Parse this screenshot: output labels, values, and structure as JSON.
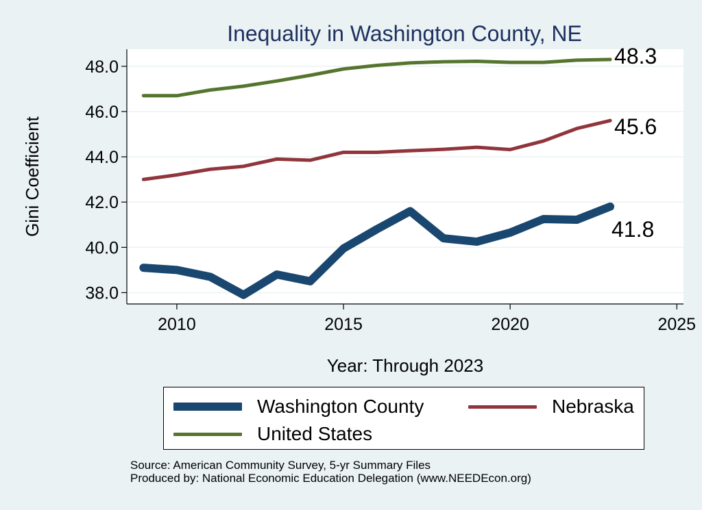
{
  "chart_data": {
    "type": "line",
    "title": "Inequality in Washington County, NE",
    "xlabel": "Year: Through 2023",
    "ylabel": "Gini Coefficient",
    "xlim": [
      2008.5,
      2025.2
    ],
    "ylim": [
      37.5,
      48.75
    ],
    "xticks": [
      "2010",
      "2015",
      "2020",
      "2025"
    ],
    "yticks": [
      "38.0",
      "40.0",
      "42.0",
      "44.0",
      "46.0",
      "48.0"
    ],
    "grid": true,
    "legend_position": "bottom",
    "x": [
      2009,
      2010,
      2011,
      2012,
      2013,
      2014,
      2015,
      2016,
      2017,
      2018,
      2019,
      2020,
      2021,
      2022,
      2023
    ],
    "series": [
      {
        "name": "Washington County",
        "color": "#1a476f",
        "values": [
          39.1,
          39.0,
          38.7,
          37.9,
          38.8,
          38.5,
          39.95,
          40.8,
          41.6,
          40.4,
          40.25,
          40.65,
          41.25,
          41.22,
          41.8
        ],
        "end_label": "41.8"
      },
      {
        "name": "Nebraska",
        "color": "#90353b",
        "values": [
          43.0,
          43.2,
          43.45,
          43.58,
          43.9,
          43.85,
          44.2,
          44.2,
          44.27,
          44.33,
          44.42,
          44.32,
          44.7,
          45.25,
          45.6
        ],
        "end_label": "45.6"
      },
      {
        "name": "United States",
        "color": "#55752f",
        "values": [
          46.7,
          46.7,
          46.95,
          47.12,
          47.35,
          47.6,
          47.88,
          48.04,
          48.15,
          48.2,
          48.22,
          48.17,
          48.17,
          48.27,
          48.3
        ],
        "end_label": "48.3"
      }
    ]
  },
  "footer": {
    "source_line1": "Source: American Community Survey, 5-yr Summary Files",
    "source_line2": "Produced by: National Economic Education Delegation (www.NEEDEcon.org)"
  }
}
